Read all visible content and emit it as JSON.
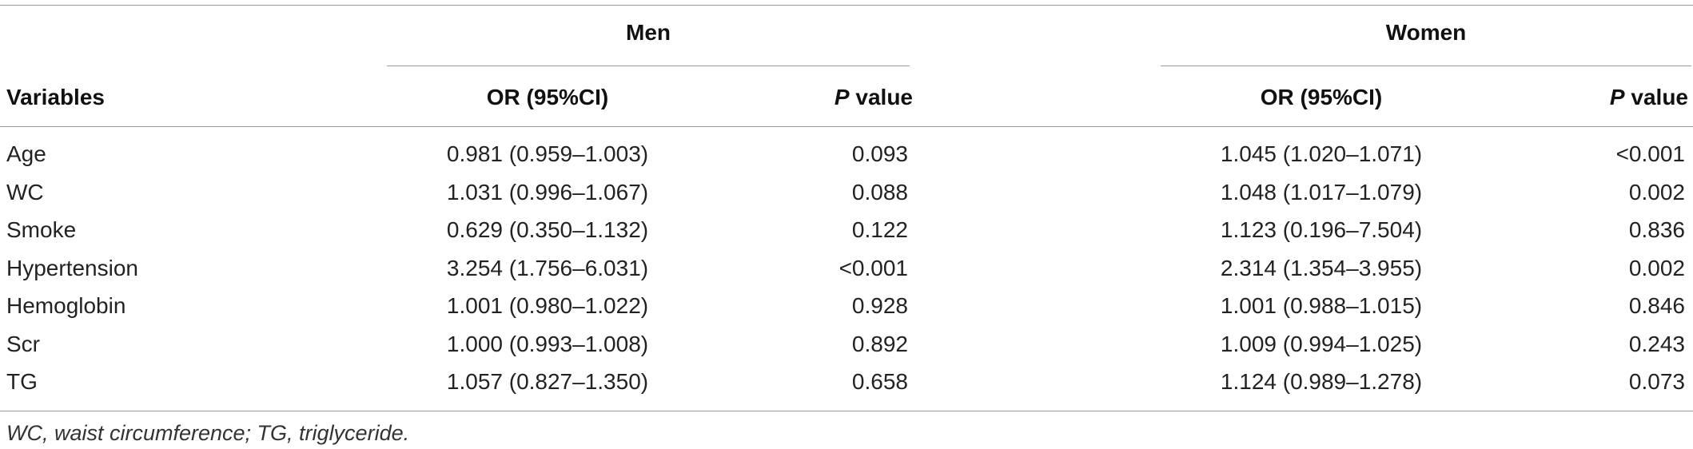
{
  "table": {
    "group_headers": {
      "men": "Men",
      "women": "Women"
    },
    "column_headers": {
      "variables": "Variables",
      "men_or": "OR (95%CI)",
      "men_p_italic": "P",
      "men_p_rest": " value",
      "women_or": "OR (95%CI)",
      "women_p_italic": "P",
      "women_p_rest": " value"
    },
    "rows": [
      {
        "variable": "Age",
        "men_or": "0.981 (0.959–1.003)",
        "men_p": "0.093",
        "women_or": "1.045 (1.020–1.071)",
        "women_p": "<0.001"
      },
      {
        "variable": "WC",
        "men_or": "1.031 (0.996–1.067)",
        "men_p": "0.088",
        "women_or": "1.048 (1.017–1.079)",
        "women_p": "0.002"
      },
      {
        "variable": "Smoke",
        "men_or": "0.629 (0.350–1.132)",
        "men_p": "0.122",
        "women_or": "1.123 (0.196–7.504)",
        "women_p": "0.836"
      },
      {
        "variable": "Hypertension",
        "men_or": "3.254 (1.756–6.031)",
        "men_p": "<0.001",
        "women_or": "2.314 (1.354–3.955)",
        "women_p": "0.002"
      },
      {
        "variable": "Hemoglobin",
        "men_or": "1.001 (0.980–1.022)",
        "men_p": "0.928",
        "women_or": "1.001 (0.988–1.015)",
        "women_p": "0.846"
      },
      {
        "variable": "Scr",
        "men_or": "1.000 (0.993–1.008)",
        "men_p": "0.892",
        "women_or": "1.009 (0.994–1.025)",
        "women_p": "0.243"
      },
      {
        "variable": "TG",
        "men_or": "1.057 (0.827–1.350)",
        "men_p": "0.658",
        "women_or": "1.124 (0.989–1.278)",
        "women_p": "0.073"
      }
    ],
    "footnote": "WC, waist circumference; TG, triglyceride."
  }
}
